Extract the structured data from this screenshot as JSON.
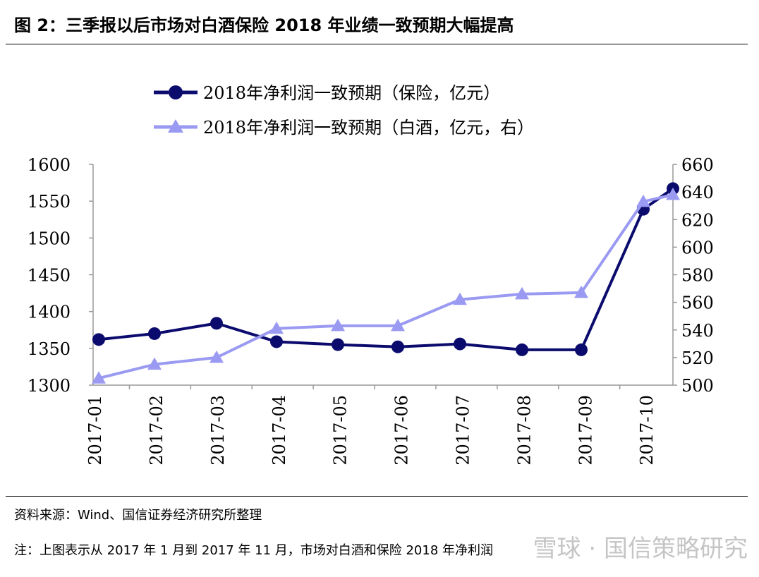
{
  "figure": {
    "title": "图 2：三季报以后市场对白酒保险 2018 年业绩一致预期大幅提高",
    "source": "资料来源：Wind、国信证券经济研究所整理",
    "note": "注：上图表示从 2017 年 1 月到 2017 年 11 月，市场对白酒和保险 2018 年净利润",
    "watermark": "雪球 · 国信策略研究"
  },
  "chart_data": {
    "type": "line",
    "categories": [
      "2017-01",
      "2017-02",
      "2017-03",
      "2017-04",
      "2017-05",
      "2017-06",
      "2017-07",
      "2017-08",
      "2017-09",
      "2017-10",
      "2017-11"
    ],
    "category_labels": [
      "2017-01",
      "2017-02",
      "2017-03",
      "2017-04",
      "2017-05",
      "2017-06",
      "2017-07",
      "2017-08",
      "2017-09",
      "2017-10"
    ],
    "series": [
      {
        "name": "2018年净利润一致预期（保险，亿元）",
        "axis": "left",
        "marker": "circle",
        "color": "#0b0b6e",
        "values": [
          1362,
          1370,
          1384,
          1359,
          1355,
          1352,
          1356,
          1348,
          1348,
          1539,
          1567
        ]
      },
      {
        "name": "2018年净利润一致预期（白酒，亿元，右）",
        "axis": "right",
        "marker": "triangle",
        "color": "#9a9af2",
        "values": [
          505,
          515,
          520,
          541,
          543,
          543,
          562,
          566,
          567,
          633,
          638
        ]
      }
    ],
    "y_left": {
      "min": 1300,
      "max": 1600,
      "ticks": [
        1300,
        1350,
        1400,
        1450,
        1500,
        1550,
        1600
      ]
    },
    "y_right": {
      "min": 500,
      "max": 660,
      "ticks": [
        500,
        520,
        540,
        560,
        580,
        600,
        620,
        640,
        660
      ]
    },
    "legend_position": "top",
    "grid": false
  }
}
